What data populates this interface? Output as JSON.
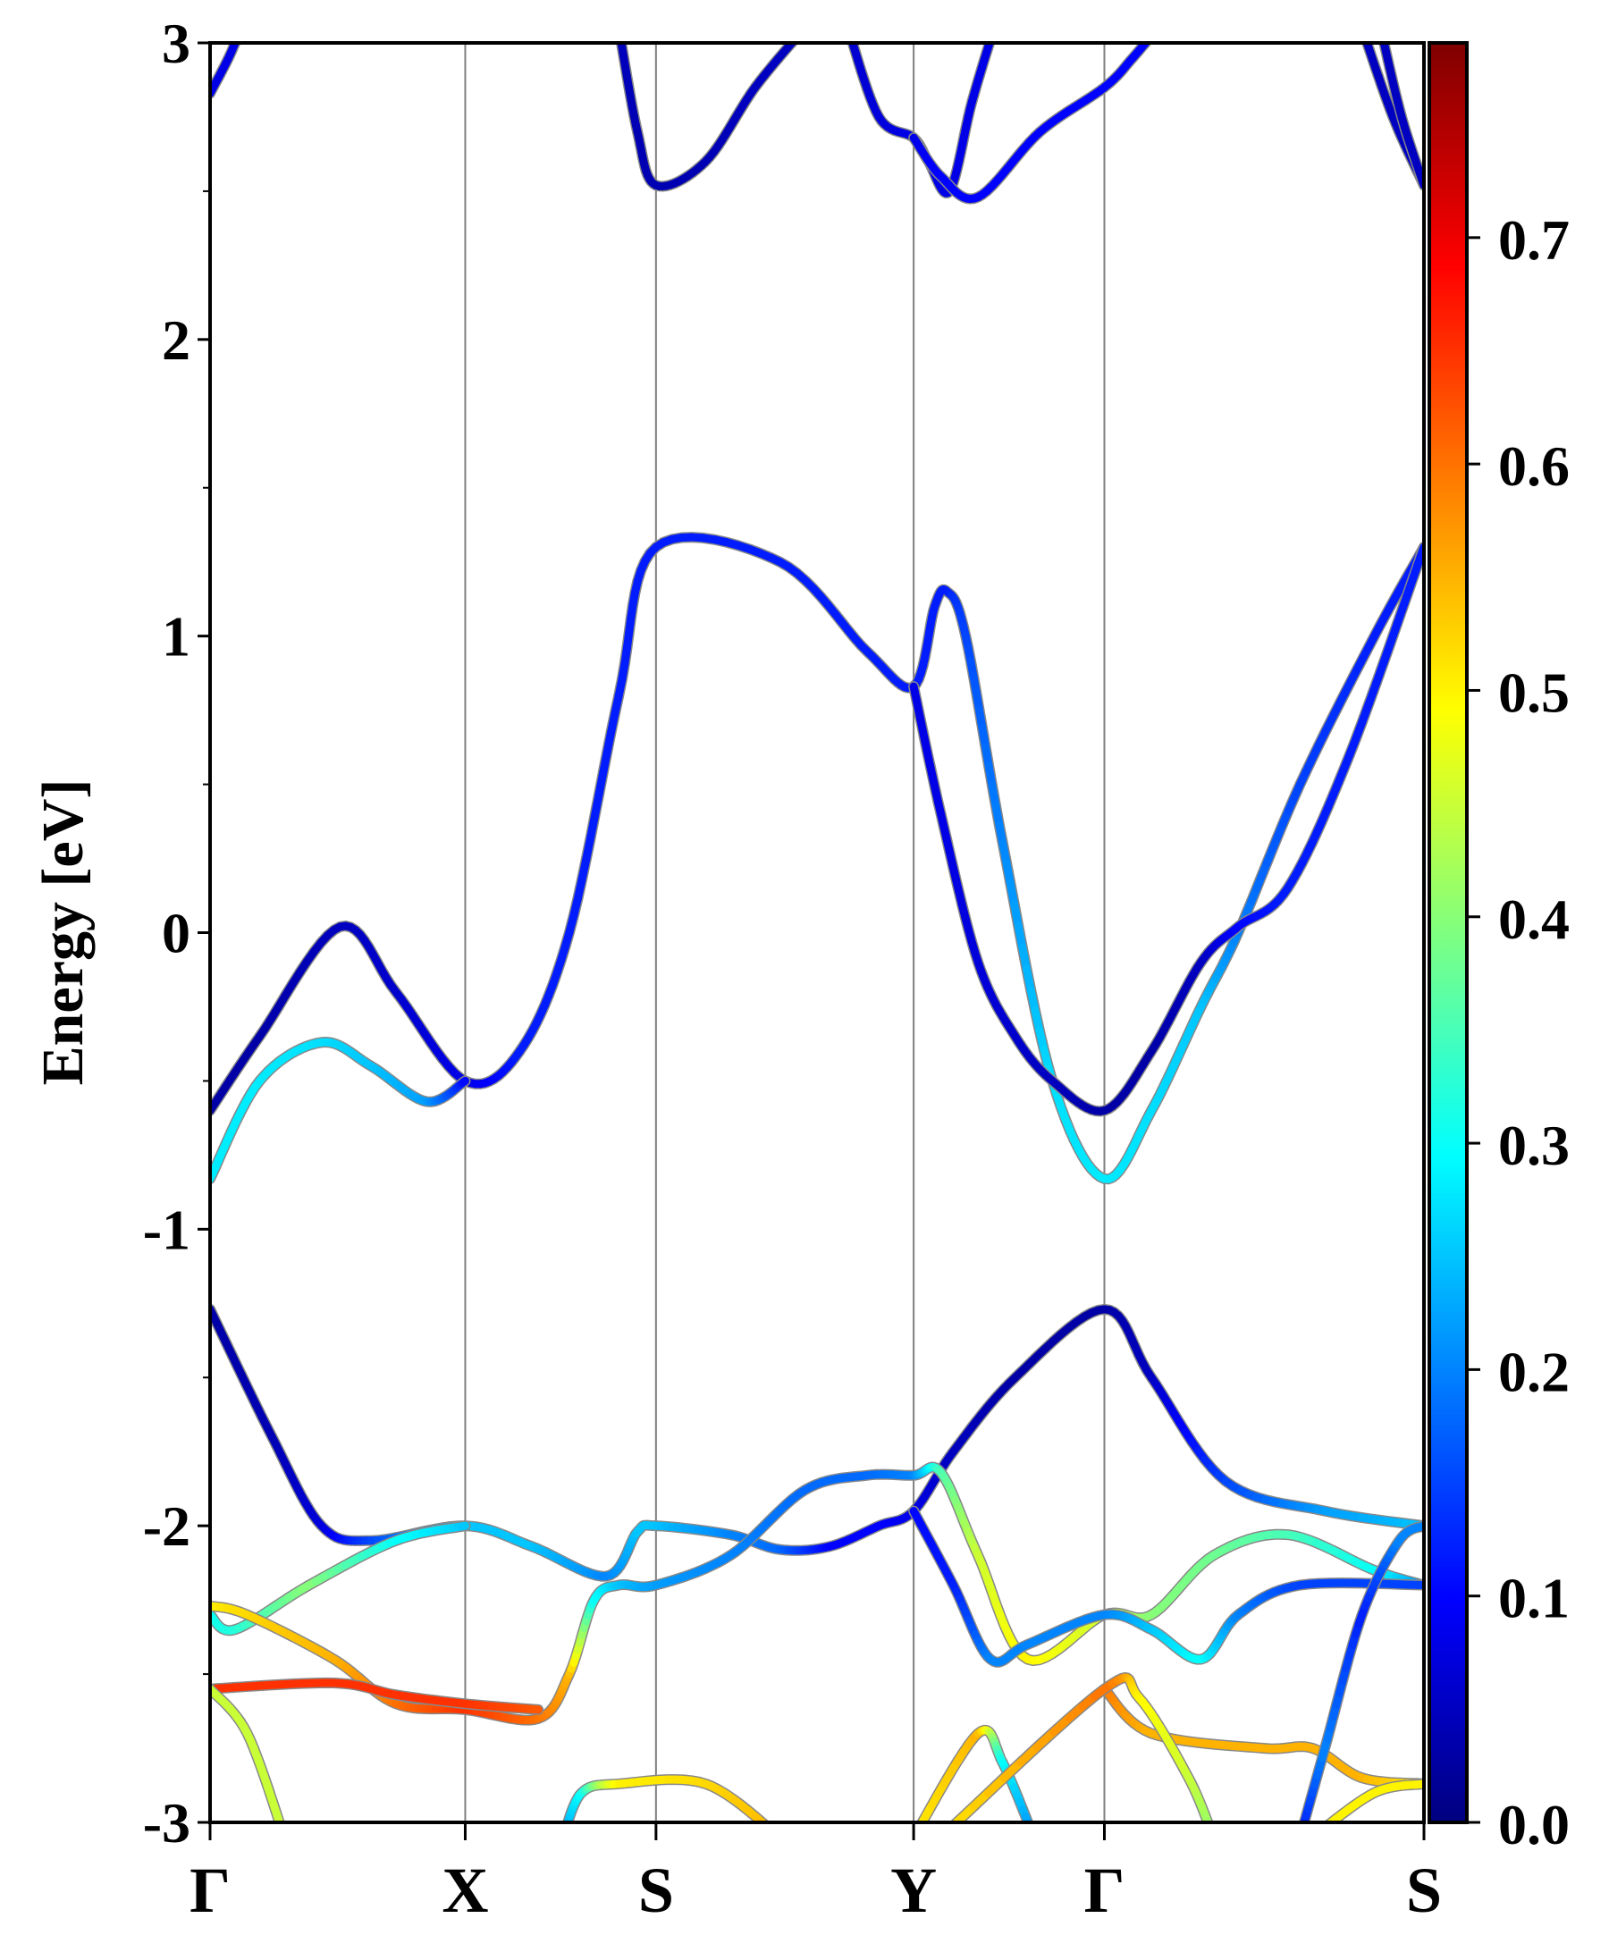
{
  "chart_data": {
    "type": "line",
    "title": "",
    "xlabel": "",
    "ylabel": "Energy [eV]",
    "ylim": [
      -3,
      3
    ],
    "yticks": [
      "3",
      "2",
      "1",
      "0",
      "-1",
      "-2",
      "-3"
    ],
    "ytick_values": [
      3,
      2,
      1,
      0,
      -1,
      -2,
      -3
    ],
    "kpoints": [
      {
        "label": "Γ",
        "k": 0
      },
      {
        "label": "X",
        "k": 206
      },
      {
        "label": "S",
        "k": 360
      },
      {
        "label": "Y",
        "k": 568
      },
      {
        "label": "Γ",
        "k": 722
      },
      {
        "label": "S",
        "k": 980
      }
    ],
    "xlim": [
      0,
      980
    ],
    "colorbar": {
      "range": [
        0,
        0.786
      ],
      "ticks": [
        "0.0",
        "0.1",
        "0.2",
        "0.3",
        "0.4",
        "0.5",
        "0.6",
        "0.7"
      ],
      "tick_values": [
        0,
        0.1,
        0.2,
        0.3,
        0.4,
        0.5,
        0.6,
        0.7
      ],
      "colormap": "jet"
    },
    "series_format": "[k, energy_eV, weight]",
    "bands": [
      [
        [
          0,
          -0.6,
          0.03
        ],
        [
          40,
          -0.35,
          0.03
        ],
        [
          105,
          0.02,
          0.05
        ],
        [
          150,
          -0.2,
          0.06
        ],
        [
          206,
          -0.5,
          0.08
        ],
        [
          250,
          -0.4,
          0.12
        ],
        [
          290,
          0,
          0.12
        ],
        [
          330,
          0.8,
          0.12
        ],
        [
          360,
          1.3,
          0.12
        ],
        [
          460,
          1.25,
          0.12
        ],
        [
          530,
          0.95,
          0.12
        ],
        [
          568,
          0.83,
          0.12
        ],
        [
          585,
          1.1,
          0.12
        ],
        [
          595,
          1.15,
          0.12
        ],
        [
          610,
          1.0,
          0.15
        ],
        [
          640,
          0.3,
          0.2
        ],
        [
          680,
          -0.5,
          0.27
        ],
        [
          722,
          -0.83,
          0.28
        ],
        [
          760,
          -0.6,
          0.27
        ],
        [
          800,
          -0.25,
          0.25
        ],
        [
          830,
          0,
          0.2
        ],
        [
          880,
          0.5,
          0.15
        ],
        [
          940,
          1.0,
          0.12
        ],
        [
          980,
          1.3,
          0.12
        ]
      ],
      [
        [
          0,
          -0.83,
          0.28
        ],
        [
          40,
          -0.5,
          0.28
        ],
        [
          90,
          -0.37,
          0.27
        ],
        [
          130,
          -0.45,
          0.25
        ],
        [
          175,
          -0.57,
          0.22
        ],
        [
          206,
          -0.5,
          0.1
        ]
      ],
      [
        [
          568,
          0.83,
          0.08
        ],
        [
          590,
          0.4,
          0.08
        ],
        [
          620,
          -0.1,
          0.07
        ],
        [
          650,
          -0.35,
          0.06
        ],
        [
          680,
          -0.5,
          0.05
        ],
        [
          722,
          -0.6,
          0.03
        ],
        [
          760,
          -0.4,
          0.03
        ],
        [
          800,
          -0.1,
          0.05
        ],
        [
          830,
          0.02,
          0.1
        ],
        [
          870,
          0.15,
          0.12
        ],
        [
          920,
          0.6,
          0.12
        ],
        [
          980,
          1.3,
          0.12
        ]
      ],
      [
        [
          0,
          2.83,
          0.08
        ],
        [
          15,
          2.95,
          0.08
        ],
        [
          25,
          3.05,
          0.08
        ]
      ],
      [
        [
          330,
          3.05,
          0.05
        ],
        [
          345,
          2.7,
          0.04
        ],
        [
          360,
          2.52,
          0.04
        ],
        [
          400,
          2.6,
          0.04
        ],
        [
          440,
          2.85,
          0.05
        ],
        [
          480,
          3.05,
          0.05
        ]
      ],
      [
        [
          515,
          3.05,
          0.06
        ],
        [
          540,
          2.75,
          0.07
        ],
        [
          568,
          2.68,
          0.08
        ],
        [
          580,
          2.6,
          0.08
        ],
        [
          597,
          2.5,
          0.08
        ],
        [
          615,
          2.8,
          0.08
        ],
        [
          633,
          3.05,
          0.08
        ]
      ],
      [
        [
          568,
          2.68,
          0.08
        ],
        [
          590,
          2.55,
          0.1
        ],
        [
          620,
          2.48,
          0.1
        ],
        [
          670,
          2.7,
          0.1
        ],
        [
          722,
          2.85,
          0.1
        ],
        [
          745,
          2.95,
          0.1
        ],
        [
          765,
          3.05,
          0.1
        ]
      ],
      [
        [
          930,
          3.05,
          0.05
        ],
        [
          955,
          2.75,
          0.05
        ],
        [
          980,
          2.52,
          0.05
        ]
      ],
      [
        [
          945,
          3.05,
          0.05
        ],
        [
          962,
          2.75,
          0.05
        ],
        [
          980,
          2.52,
          0.05
        ]
      ],
      [
        [
          0,
          -1.27,
          0.03
        ],
        [
          50,
          -1.7,
          0.04
        ],
        [
          90,
          -2.0,
          0.07
        ],
        [
          130,
          -2.05,
          0.15
        ],
        [
          206,
          -2.0,
          0.25
        ],
        [
          260,
          -2.07,
          0.25
        ],
        [
          320,
          -2.17,
          0.2
        ],
        [
          345,
          -2.02,
          0.25
        ],
        [
          360,
          -2.0,
          0.25
        ],
        [
          420,
          -2.03,
          0.2
        ],
        [
          460,
          -2.08,
          0.18
        ],
        [
          500,
          -2.07,
          0.1
        ],
        [
          540,
          -2.0,
          0.1
        ],
        [
          568,
          -1.95,
          0.08
        ],
        [
          600,
          -1.75,
          0.05
        ],
        [
          650,
          -1.5,
          0.03
        ],
        [
          722,
          -1.27,
          0.03
        ],
        [
          760,
          -1.5,
          0.05
        ],
        [
          820,
          -1.85,
          0.15
        ],
        [
          900,
          -1.95,
          0.22
        ],
        [
          980,
          -2.0,
          0.25
        ]
      ],
      [
        [
          0,
          -2.3,
          0.3
        ],
        [
          20,
          -2.35,
          0.32
        ],
        [
          80,
          -2.2,
          0.4
        ],
        [
          150,
          -2.05,
          0.3
        ],
        [
          206,
          -2.0,
          0.25
        ]
      ],
      [
        [
          0,
          -2.27,
          0.5
        ],
        [
          30,
          -2.3,
          0.52
        ],
        [
          100,
          -2.45,
          0.55
        ],
        [
          150,
          -2.6,
          0.6
        ],
        [
          206,
          -2.62,
          0.65
        ],
        [
          265,
          -2.65,
          0.6
        ],
        [
          290,
          -2.5,
          0.55
        ],
        [
          310,
          -2.25,
          0.3
        ],
        [
          330,
          -2.2,
          0.25
        ],
        [
          360,
          -2.2,
          0.22
        ],
        [
          420,
          -2.1,
          0.2
        ],
        [
          480,
          -1.88,
          0.18
        ],
        [
          530,
          -1.83,
          0.18
        ],
        [
          568,
          -1.83,
          0.2
        ],
        [
          590,
          -1.82,
          0.35
        ],
        [
          620,
          -2.1,
          0.45
        ],
        [
          660,
          -2.45,
          0.5
        ],
        [
          722,
          -2.3,
          0.45
        ],
        [
          760,
          -2.3,
          0.4
        ],
        [
          810,
          -2.1,
          0.38
        ],
        [
          870,
          -2.03,
          0.35
        ],
        [
          940,
          -2.15,
          0.3
        ],
        [
          980,
          -2.2,
          0.2
        ]
      ],
      [
        [
          0,
          -2.55,
          0.65
        ],
        [
          100,
          -2.53,
          0.65
        ],
        [
          150,
          -2.57,
          0.65
        ],
        [
          206,
          -2.6,
          0.65
        ],
        [
          265,
          -2.62,
          0.62
        ]
      ],
      [
        [
          0,
          -2.55,
          0.45
        ],
        [
          30,
          -2.7,
          0.45
        ],
        [
          60,
          -3.05,
          0.45
        ]
      ],
      [
        [
          568,
          -1.95,
          0.1
        ],
        [
          600,
          -2.2,
          0.12
        ],
        [
          630,
          -2.45,
          0.2
        ],
        [
          660,
          -2.4,
          0.2
        ],
        [
          722,
          -2.3,
          0.2
        ],
        [
          760,
          -2.35,
          0.25
        ],
        [
          800,
          -2.45,
          0.3
        ],
        [
          830,
          -2.3,
          0.2
        ],
        [
          880,
          -2.2,
          0.15
        ],
        [
          980,
          -2.2,
          0.15
        ]
      ],
      [
        [
          722,
          -2.55,
          0.6
        ],
        [
          760,
          -2.7,
          0.55
        ],
        [
          850,
          -2.75,
          0.55
        ],
        [
          890,
          -2.75,
          0.55
        ],
        [
          930,
          -2.85,
          0.55
        ],
        [
          980,
          -2.87,
          0.5
        ]
      ],
      [
        [
          568,
          -3.05,
          0.5
        ],
        [
          620,
          -2.7,
          0.55
        ],
        [
          640,
          -2.8,
          0.3
        ],
        [
          665,
          -3.05,
          0.2
        ]
      ],
      [
        [
          590,
          -3.05,
          0.5
        ],
        [
          722,
          -2.55,
          0.6
        ],
        [
          750,
          -2.58,
          0.5
        ],
        [
          790,
          -2.85,
          0.45
        ],
        [
          810,
          -3.05,
          0.4
        ]
      ],
      [
        [
          285,
          -3.05,
          0.2
        ],
        [
          300,
          -2.9,
          0.3
        ],
        [
          330,
          -2.87,
          0.5
        ],
        [
          400,
          -2.87,
          0.52
        ],
        [
          460,
          -3.05,
          0.55
        ]
      ],
      [
        [
          880,
          -3.05,
          0.1
        ],
        [
          900,
          -2.75,
          0.2
        ],
        [
          930,
          -2.3,
          0.12
        ],
        [
          960,
          -2.05,
          0.2
        ],
        [
          980,
          -2.0,
          0.2
        ]
      ],
      [
        [
          890,
          -3.05,
          0.5
        ],
        [
          940,
          -2.9,
          0.5
        ],
        [
          980,
          -2.87,
          0.5
        ]
      ]
    ]
  }
}
